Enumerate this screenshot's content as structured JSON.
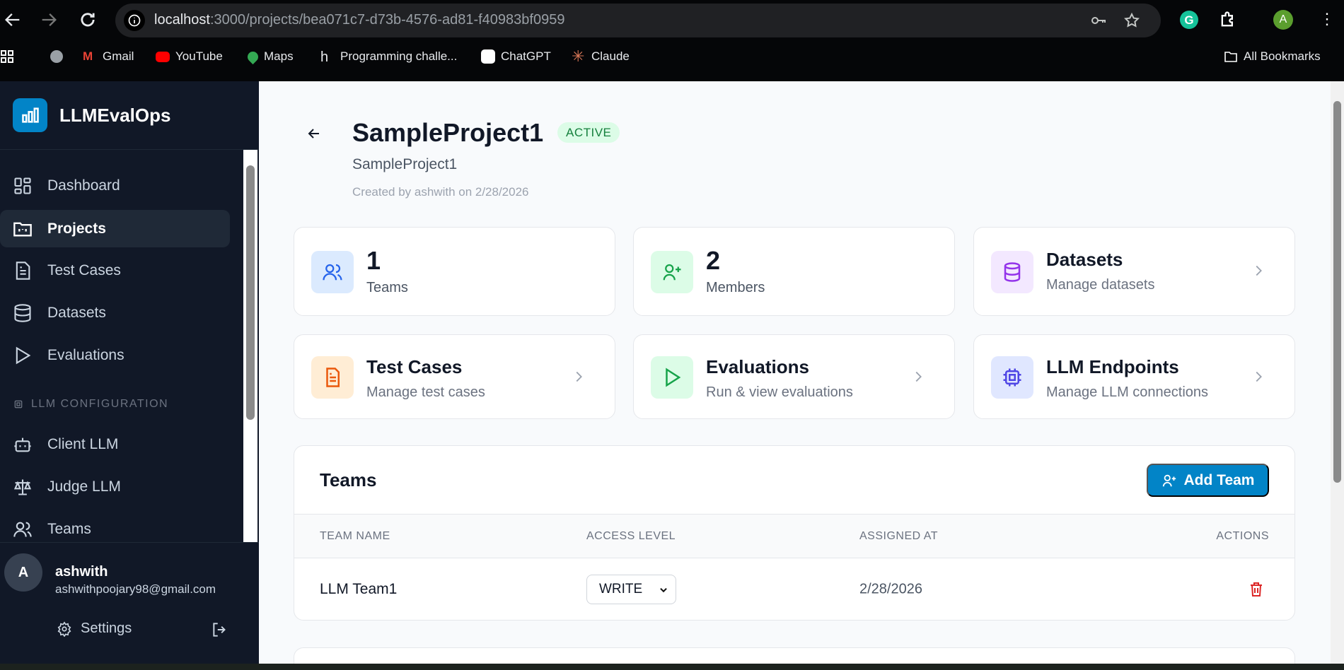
{
  "browser": {
    "url_host": "localhost",
    "url_rest": ":3000/projects/bea071c7-d73b-4576-ad81-f40983bf0959",
    "profile_initial": "A",
    "bookmarks": [
      "Gmail",
      "YouTube",
      "Maps",
      "Programming challe...",
      "ChatGPT",
      "Claude"
    ],
    "all_bookmarks": "All Bookmarks"
  },
  "sidebar": {
    "brand": "LLMEvalOps",
    "items": [
      {
        "label": "Dashboard",
        "icon": "dashboard-icon"
      },
      {
        "label": "Projects",
        "icon": "folder-icon",
        "active": true
      },
      {
        "label": "Test Cases",
        "icon": "file-text-icon"
      },
      {
        "label": "Datasets",
        "icon": "database-icon"
      },
      {
        "label": "Evaluations",
        "icon": "play-icon"
      }
    ],
    "section_label": "LLM CONFIGURATION",
    "config_items": [
      {
        "label": "Client LLM",
        "icon": "bot-icon"
      },
      {
        "label": "Judge LLM",
        "icon": "scale-icon"
      },
      {
        "label": "Teams",
        "icon": "users-icon"
      }
    ],
    "user": {
      "initial": "A",
      "name": "ashwith",
      "email": "ashwithpoojary98@gmail.com"
    },
    "settings_label": "Settings"
  },
  "project": {
    "title": "SampleProject1",
    "status": "ACTIVE",
    "description": "SampleProject1",
    "created": "Created by ashwith on 2/28/2026"
  },
  "stats": [
    {
      "value": "1",
      "label": "Teams",
      "color": "#2563eb",
      "bg": "#dbeafe"
    },
    {
      "value": "2",
      "label": "Members",
      "color": "#16a34a",
      "bg": "#dcfce7"
    }
  ],
  "links": [
    {
      "title": "Datasets",
      "desc": "Manage datasets",
      "color": "#9333ea",
      "bg": "#f3e8ff"
    },
    {
      "title": "Test Cases",
      "desc": "Manage test cases",
      "color": "#ea580c",
      "bg": "#ffedd5"
    },
    {
      "title": "Evaluations",
      "desc": "Run & view evaluations",
      "color": "#16a34a",
      "bg": "#dcfce7"
    },
    {
      "title": "LLM Endpoints",
      "desc": "Manage LLM connections",
      "color": "#4f46e5",
      "bg": "#e0e7ff"
    }
  ],
  "teams": {
    "title": "Teams",
    "add_label": "Add Team",
    "columns": [
      "TEAM NAME",
      "ACCESS LEVEL",
      "ASSIGNED AT",
      "ACTIONS"
    ],
    "rows": [
      {
        "name": "LLM Team1",
        "access": "WRITE",
        "assigned": "2/28/2026"
      }
    ]
  }
}
